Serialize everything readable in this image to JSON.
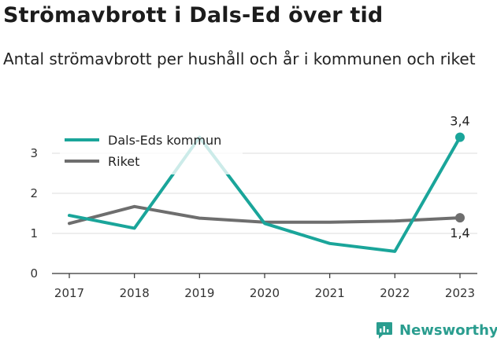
{
  "chart_data": {
    "type": "line",
    "title": "Strömavbrott i Dals-Ed över tid",
    "subtitle": "Antal strömavbrott per hushåll och år i kommunen och riket",
    "categories": [
      "2017",
      "2018",
      "2019",
      "2020",
      "2021",
      "2022",
      "2023"
    ],
    "y_ticks": [
      "0",
      "1",
      "2",
      "3"
    ],
    "ylim": [
      0,
      3.6
    ],
    "grid": "horizontal",
    "legend_position": "top-left",
    "series": [
      {
        "name": "Dals-Eds kommun",
        "color": "#1aa59a",
        "values": [
          1.45,
          1.13,
          3.4,
          1.25,
          0.75,
          0.55,
          3.4
        ]
      },
      {
        "name": "Riket",
        "color": "#6e6e6e",
        "values": [
          1.25,
          1.67,
          1.38,
          1.28,
          1.28,
          1.31,
          1.39
        ]
      }
    ],
    "end_labels": [
      "3,4",
      "1,4"
    ]
  },
  "brand": {
    "name": "Newsworthy",
    "color": "#2a9d8f"
  }
}
